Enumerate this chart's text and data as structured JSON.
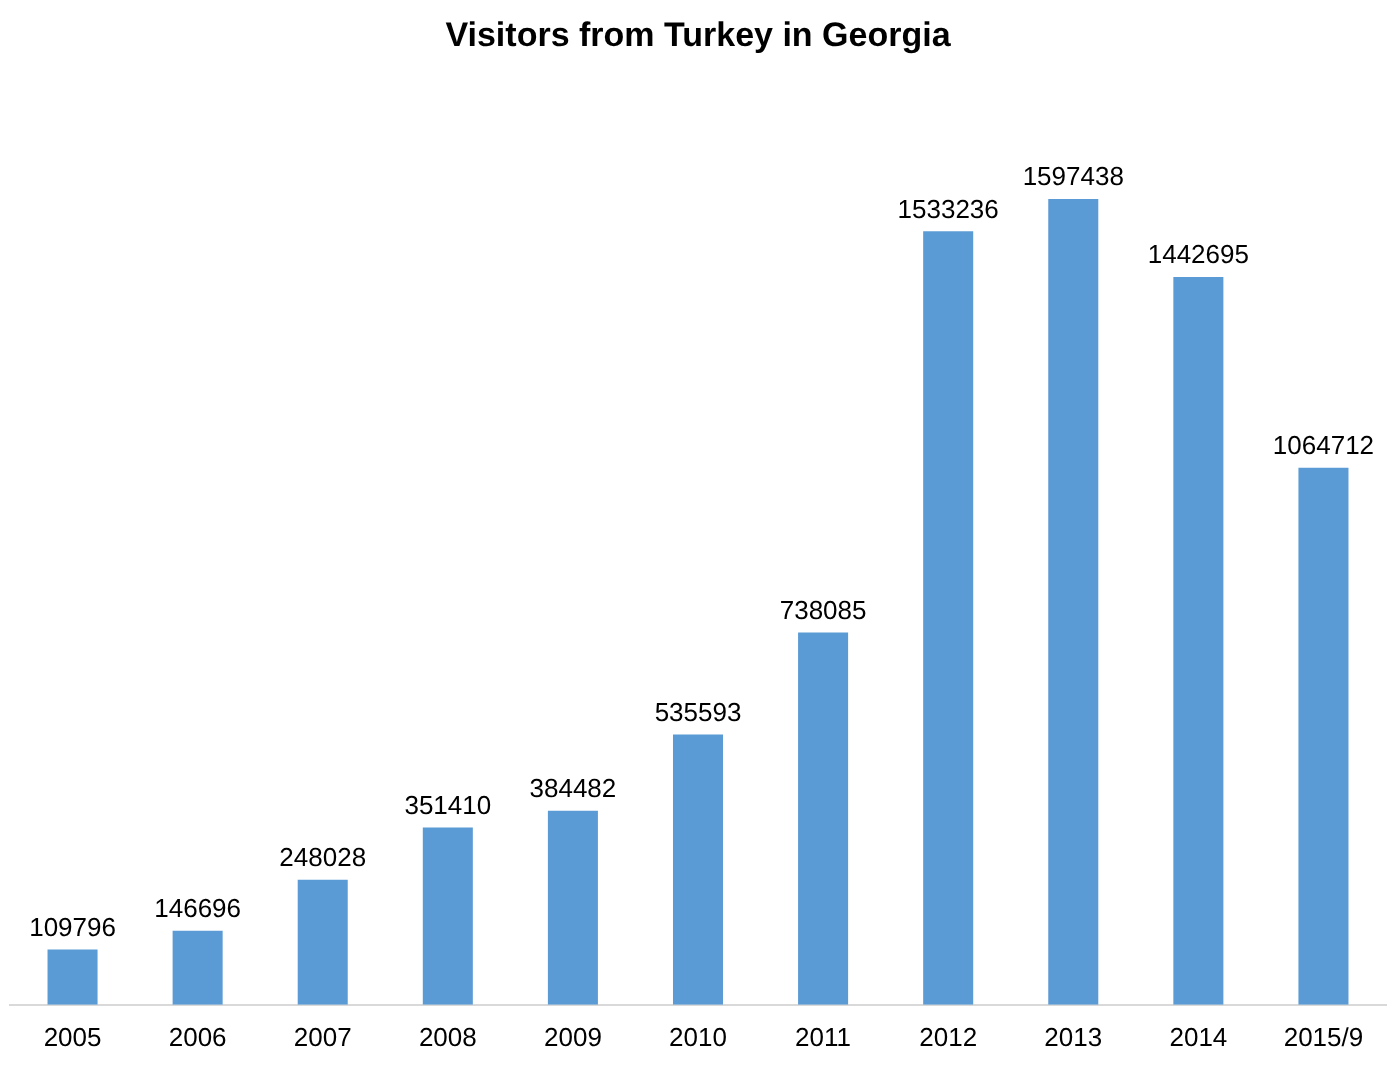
{
  "chart_data": {
    "type": "bar",
    "title": "Visitors from Turkey in Georgia",
    "categories": [
      "2005",
      "2006",
      "2007",
      "2008",
      "2009",
      "2010",
      "2011",
      "2012",
      "2013",
      "2014",
      "2015/9"
    ],
    "values": [
      109796,
      146696,
      248028,
      351410,
      384482,
      535593,
      738085,
      1533236,
      1597438,
      1442695,
      1064712
    ],
    "color": "#5b9bd5",
    "data_labels": true,
    "grid": false,
    "legend": false
  }
}
